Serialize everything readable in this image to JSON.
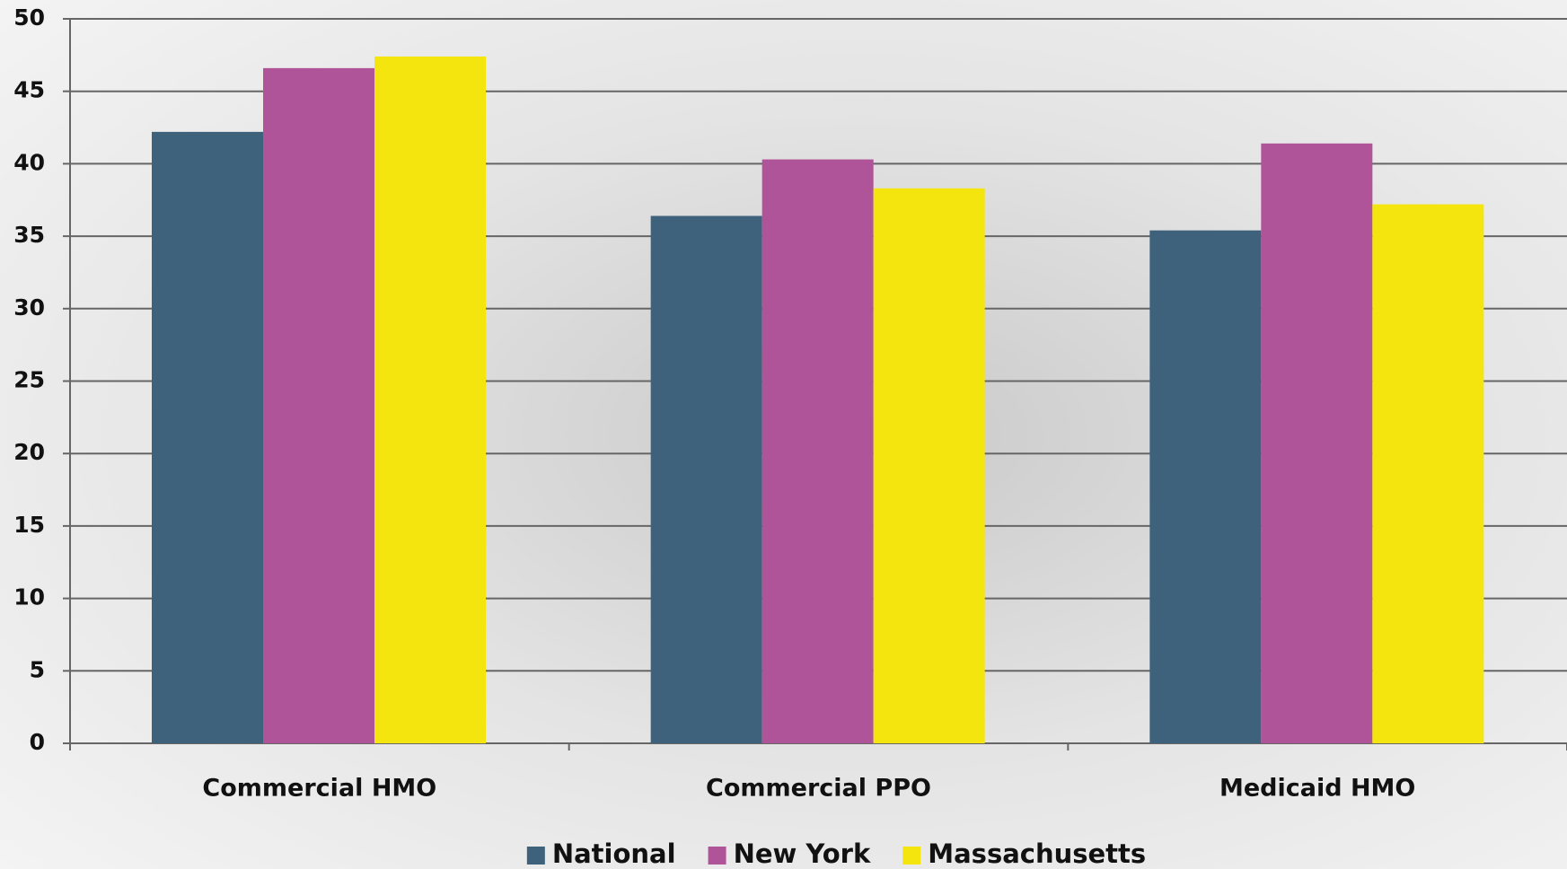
{
  "chart_data": {
    "type": "bar",
    "categories": [
      "Commercial HMO",
      "Commercial PPO",
      "Medicaid HMO"
    ],
    "series": [
      {
        "name": "National",
        "color": "#3f627c",
        "values": [
          42.2,
          36.4,
          35.4
        ]
      },
      {
        "name": "New York",
        "color": "#b05499",
        "values": [
          46.6,
          40.3,
          41.4
        ]
      },
      {
        "name": "Massachusetts",
        "color": "#f5e50f",
        "values": [
          47.4,
          38.3,
          37.2
        ]
      }
    ],
    "ylim": [
      0,
      50
    ],
    "yticks": [
      0,
      5,
      10,
      15,
      20,
      25,
      30,
      35,
      40,
      45,
      50
    ],
    "grid": true,
    "legend": "bottom"
  }
}
